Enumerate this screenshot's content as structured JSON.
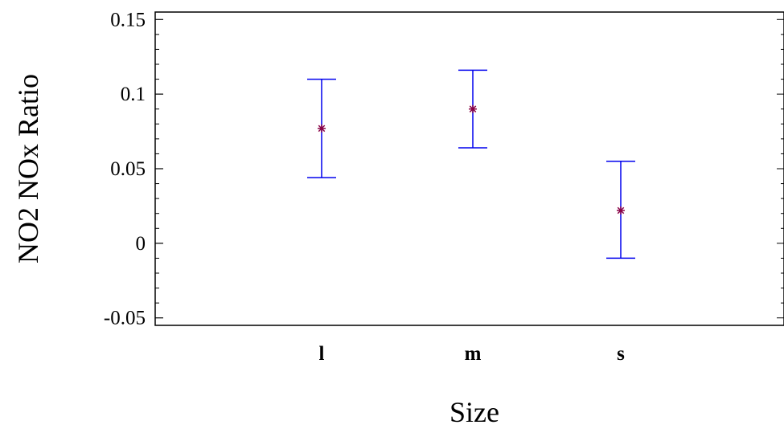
{
  "chart_data": {
    "type": "scatter",
    "subtype": "means-with-error-bars",
    "title": "",
    "xlabel": "Size",
    "ylabel": "NO2 NOx Ratio",
    "categories": [
      "l",
      "m",
      "s"
    ],
    "series": [
      {
        "mean": [
          0.077,
          0.09,
          0.022
        ],
        "lower": [
          0.044,
          0.064,
          -0.01
        ],
        "upper": [
          0.11,
          0.116,
          0.055
        ]
      }
    ],
    "ylim": [
      -0.055,
      0.155
    ],
    "yticks": [
      -0.05,
      0,
      0.05,
      0.1,
      0.15
    ],
    "ytick_labels": [
      "-0.05",
      "0",
      "0.05",
      "0.1",
      "0.15"
    ],
    "grid": false,
    "legend": "none",
    "colors": {
      "error_bar": "#0000ee",
      "mean_marker": "#880044",
      "axis": "#000000"
    }
  }
}
